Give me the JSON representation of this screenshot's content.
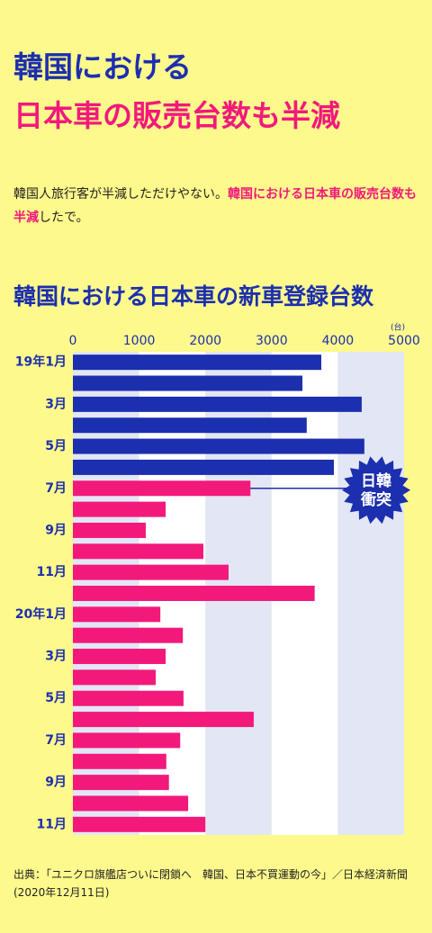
{
  "header": {
    "title_line1": "韓国における",
    "title_line2": "日本車の販売台数も半減"
  },
  "body": [
    "韓国人旅行客が半減しただけやない。",
    "韓国における日本車の販売台数も半減",
    "したで。"
  ],
  "chart_data": {
    "type": "hbar",
    "title": "韓国における日本車の新車登録台数",
    "unit": "(台)",
    "categories": [
      "19年1月",
      null,
      "3月",
      null,
      "5月",
      null,
      "7月",
      null,
      "9月",
      null,
      "11月",
      null,
      "20年1月",
      null,
      "3月",
      null,
      "5月",
      null,
      "7月",
      null,
      "9月",
      null,
      "11月"
    ],
    "values": [
      3750,
      3465,
      4360,
      3530,
      4400,
      3940,
      2680,
      1400,
      1100,
      1970,
      2350,
      3650,
      1320,
      1660,
      1400,
      1250,
      1670,
      2730,
      1620,
      1410,
      1450,
      1740,
      2000
    ],
    "colors": [
      "#1c2fae",
      "#1c2fae",
      "#1c2fae",
      "#1c2fae",
      "#1c2fae",
      "#1c2fae",
      "#f2197b",
      "#f2197b",
      "#f2197b",
      "#f2197b",
      "#f2197b",
      "#f2197b",
      "#f2197b",
      "#f2197b",
      "#f2197b",
      "#f2197b",
      "#f2197b",
      "#f2197b",
      "#f2197b",
      "#f2197b",
      "#f2197b",
      "#f2197b",
      "#f2197b"
    ],
    "xlim": [
      0,
      5000
    ],
    "xticks": [
      0,
      1000,
      2000,
      3000,
      4000,
      5000
    ],
    "annotation": {
      "lines": [
        "日韓",
        "衝突"
      ],
      "index": 6
    }
  },
  "source": {
    "line1": "出典：「ユニクロ旗艦店ついに閉鎖へ　韓国、日本不買運動の今」／日本経済新聞",
    "line2": "(2020年12月11日)"
  }
}
